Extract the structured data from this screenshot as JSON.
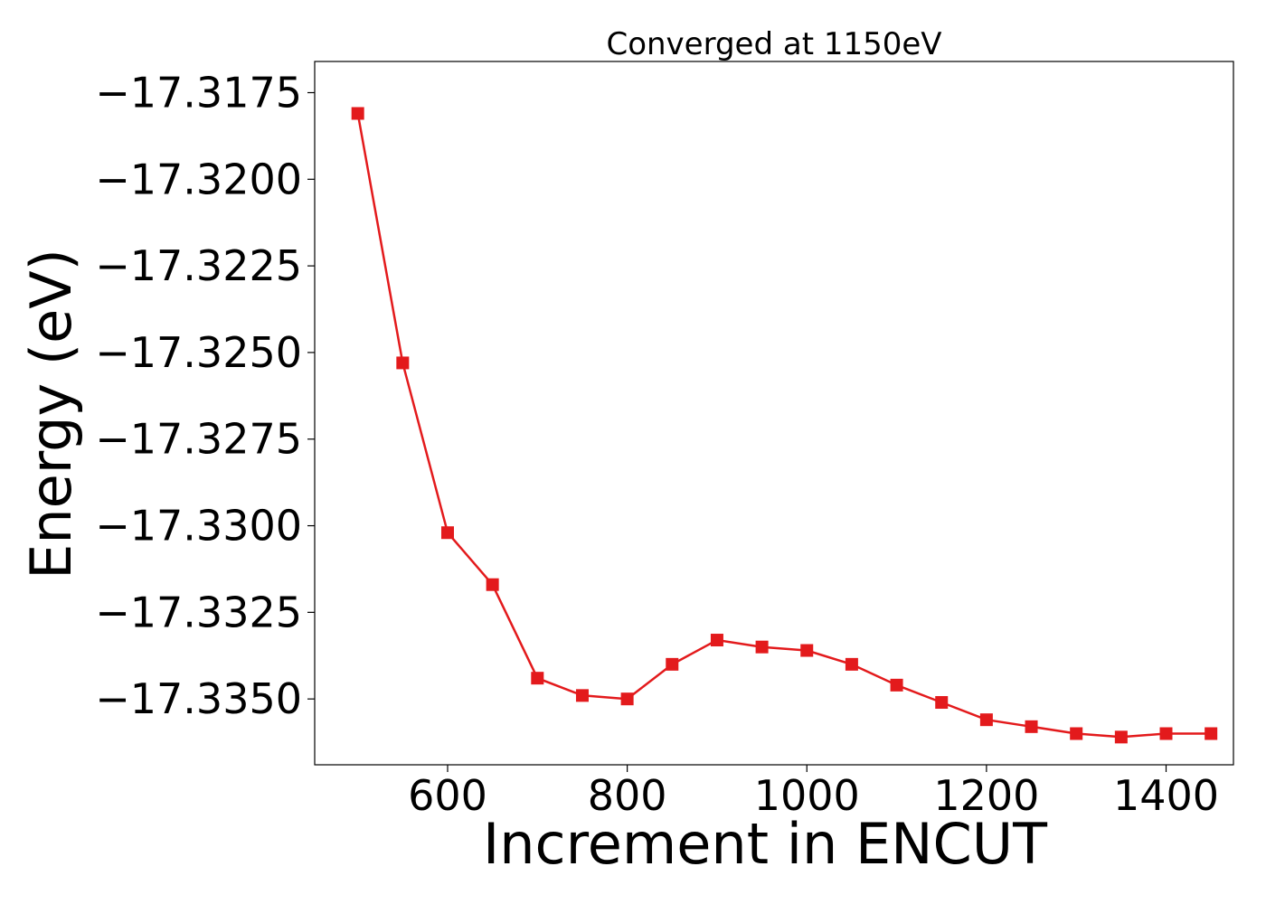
{
  "chart_data": {
    "type": "line",
    "title": "Converged at 1150eV",
    "xlabel": "Increment in ENCUT",
    "ylabel": "Energy (eV)",
    "xlim": [
      452,
      1475
    ],
    "ylim": [
      -17.3369,
      -17.3166
    ],
    "x_ticks": [
      600,
      800,
      1000,
      1200,
      1400
    ],
    "y_ticks": [
      -17.3175,
      -17.32,
      -17.3225,
      -17.325,
      -17.3275,
      -17.33,
      -17.3325,
      -17.335
    ],
    "y_tick_labels": [
      "−17.3175",
      "−17.3200",
      "−17.3225",
      "−17.3250",
      "−17.3275",
      "−17.3300",
      "−17.3325",
      "−17.3350"
    ],
    "grid": false,
    "line_color": "#e31a1c",
    "marker": "square",
    "series": [
      {
        "x": [
          500,
          550,
          600,
          650,
          700,
          750,
          800,
          850,
          900,
          950,
          1000,
          1050,
          1100,
          1150,
          1200,
          1250,
          1300,
          1350,
          1400,
          1450
        ],
        "y": [
          -17.3181,
          -17.3253,
          -17.3302,
          -17.3317,
          -17.3344,
          -17.3349,
          -17.335,
          -17.334,
          -17.3333,
          -17.3335,
          -17.3336,
          -17.334,
          -17.3346,
          -17.3351,
          -17.3356,
          -17.3358,
          -17.336,
          -17.3361,
          -17.336,
          -17.336
        ]
      }
    ]
  }
}
